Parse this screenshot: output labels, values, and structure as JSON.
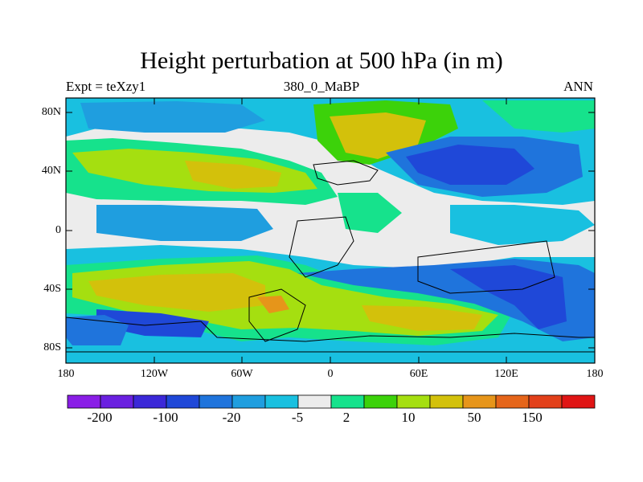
{
  "title": "Height perturbation at 500 hPa (in m)",
  "subtitle": {
    "left": "Expt = teXzy1",
    "center": "380_0_MaBP",
    "right": "ANN"
  },
  "axes": {
    "lat_labels": [
      "80N",
      "40N",
      "0",
      "40S",
      "80S"
    ],
    "lon_labels": [
      "180",
      "120W",
      "60W",
      "0",
      "60E",
      "120E",
      "180"
    ]
  },
  "colorbar": {
    "colors": [
      "#8a1ee6",
      "#6a20e0",
      "#3b28d8",
      "#1f48d8",
      "#1f74dc",
      "#1f9edf",
      "#19c0e0",
      "#ececec",
      "#16e28c",
      "#3cd20a",
      "#a5df10",
      "#d3c10b",
      "#e6951a",
      "#e5651a",
      "#e2401a",
      "#e01515"
    ],
    "labels": [
      "-200",
      "-100",
      "-20",
      "-5",
      "2",
      "10",
      "50",
      "150"
    ]
  },
  "chart_data": {
    "type": "heatmap",
    "title": "Height perturbation at 500 hPa (in m)",
    "x_range": [
      -180,
      180
    ],
    "y_range": [
      -90,
      90
    ],
    "contour_levels": [
      -250,
      -200,
      -150,
      -100,
      -50,
      -20,
      -10,
      -5,
      -2,
      2,
      5,
      10,
      20,
      50,
      100,
      150,
      250
    ],
    "features": [
      {
        "name": "north-mid-lat-positive",
        "center": [
          -120,
          40
        ],
        "approx_value": 50
      },
      {
        "name": "north-atlantic-positive",
        "center": [
          20,
          60
        ],
        "approx_value": 50
      },
      {
        "name": "north-eastern-negative",
        "center": [
          95,
          40
        ],
        "approx_value": -100
      },
      {
        "name": "north-pacific-negative",
        "center": [
          -155,
          65
        ],
        "approx_value": -20
      },
      {
        "name": "southern-positive-band",
        "center": [
          -110,
          -45
        ],
        "approx_value": 50
      },
      {
        "name": "south-indian-positive",
        "center": [
          70,
          -60
        ],
        "approx_value": 50
      },
      {
        "name": "southern-negative-band",
        "center": [
          110,
          -40
        ],
        "approx_value": -100
      },
      {
        "name": "south-pole-negative",
        "center": [
          -150,
          -60
        ],
        "approx_value": -100
      }
    ]
  }
}
